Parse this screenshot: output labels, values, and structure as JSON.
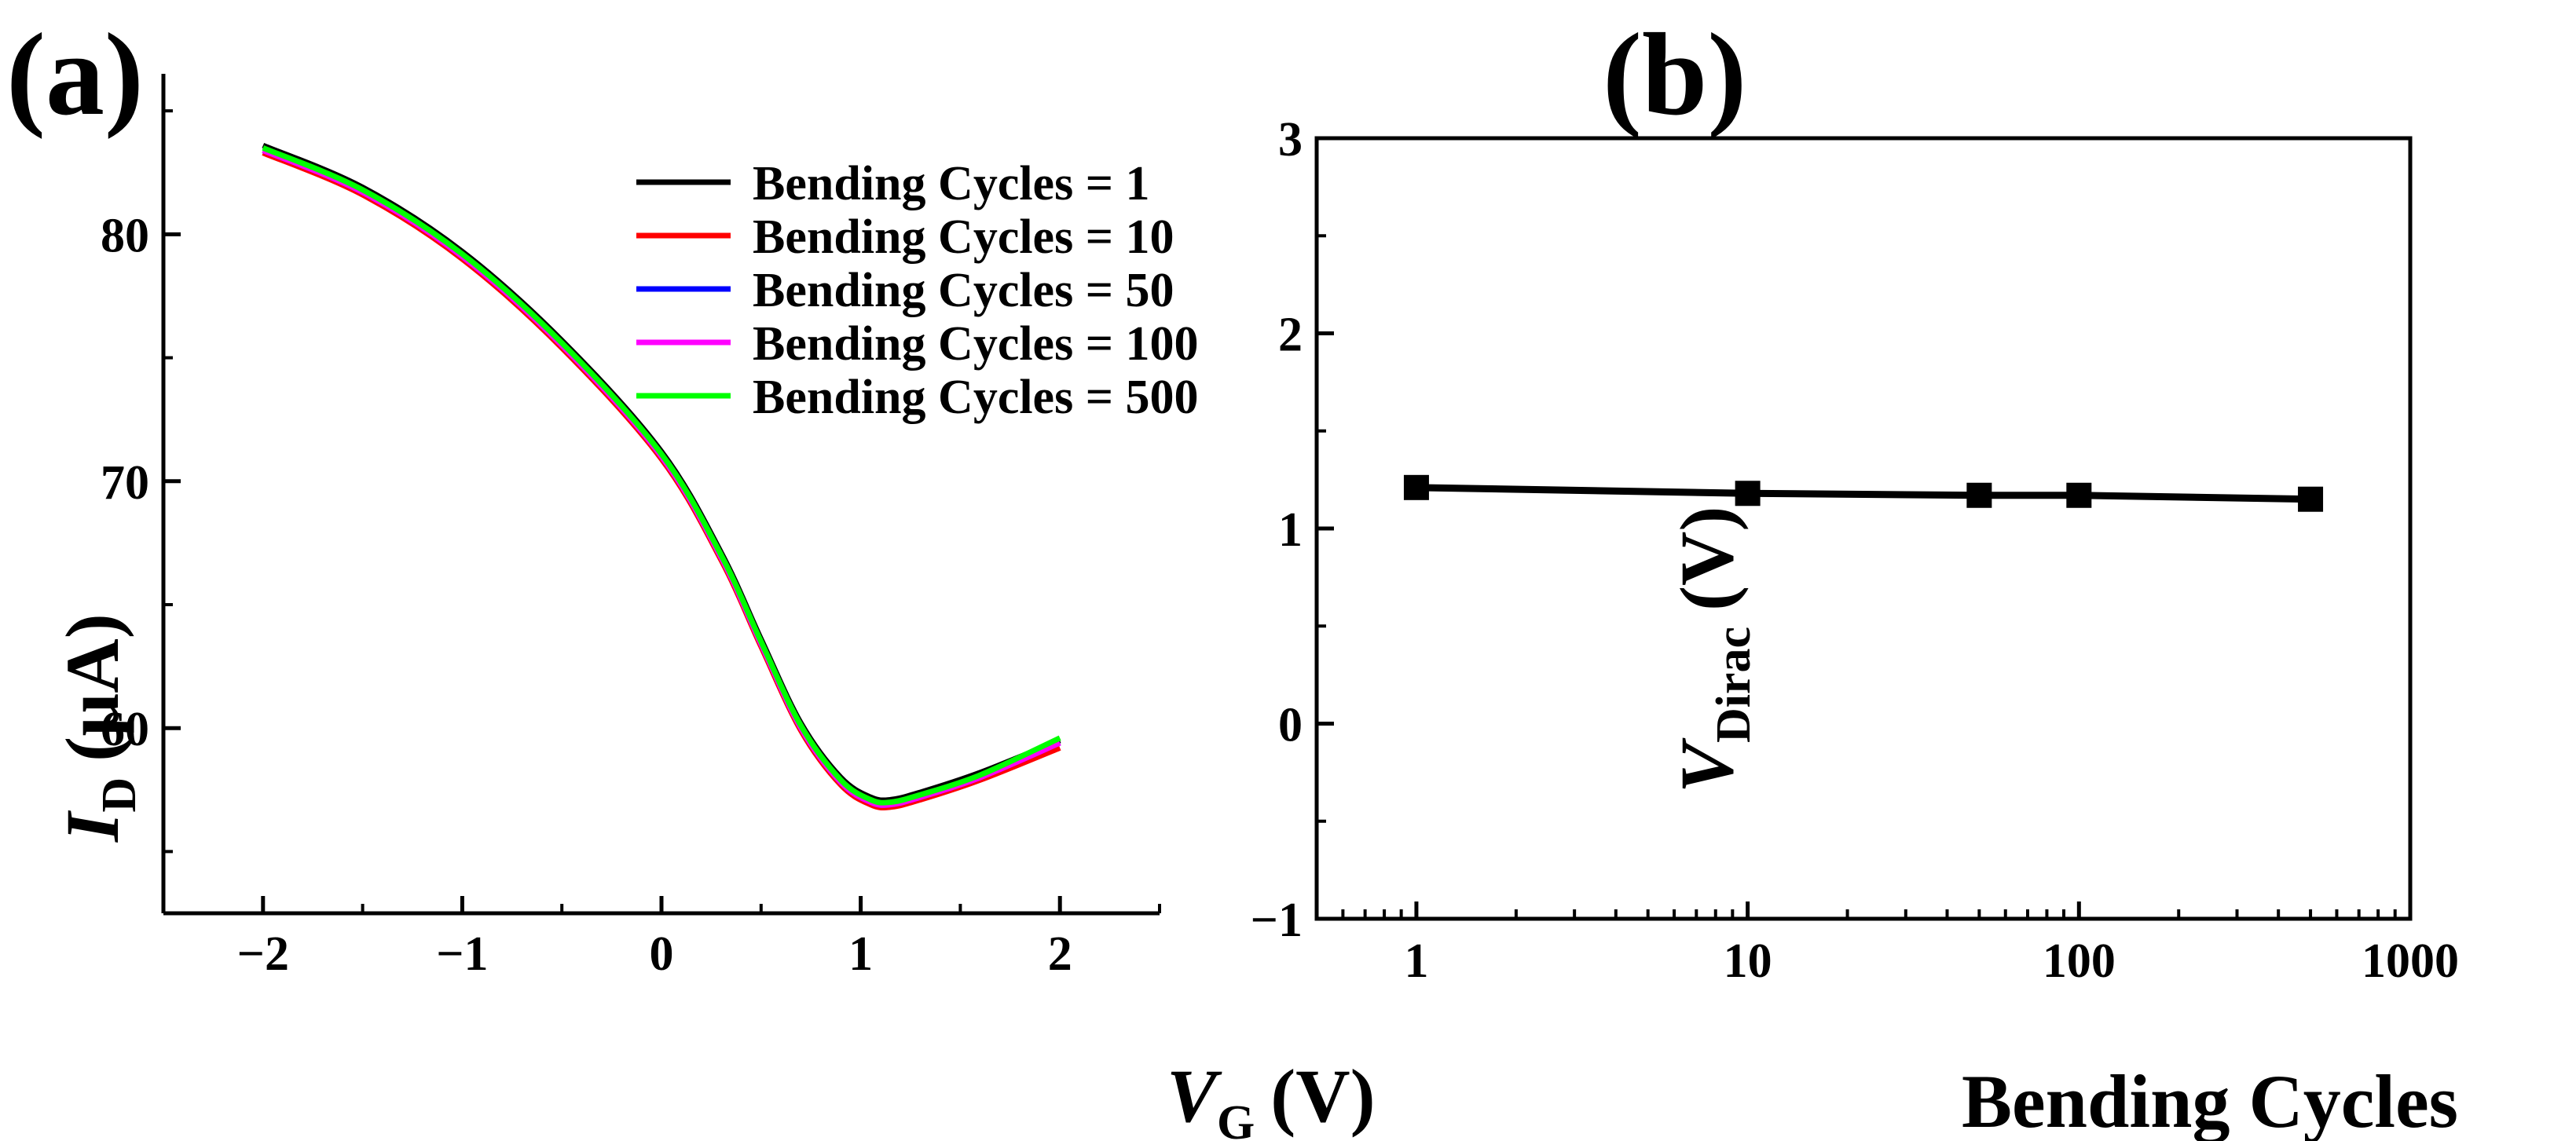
{
  "chart_data": [
    {
      "panel_label": "(a)",
      "type": "line",
      "title": "",
      "xlabel": {
        "main": "V",
        "sub": "G",
        "unit": "(V)"
      },
      "ylabel": {
        "main": "I",
        "sub": "D",
        "unit": "(µA)"
      },
      "xlim": [
        -2.5,
        2.5
      ],
      "ylim": [
        52.5,
        86.5
      ],
      "xticks": [
        -2,
        -1,
        0,
        1,
        2
      ],
      "xtick_labels": [
        "−2",
        "−1",
        "0",
        "1",
        "2"
      ],
      "yticks": [
        60,
        70,
        80
      ],
      "ytick_labels": [
        "60",
        "70",
        "80"
      ],
      "legend_position": "top-right",
      "series": [
        {
          "name": "Bending Cycles = 1",
          "color": "#000000",
          "x": [
            -2,
            -1.5,
            -1,
            -0.5,
            0,
            0.3,
            0.5,
            0.7,
            0.9,
            1.05,
            1.15,
            1.3,
            1.6,
            2
          ],
          "y": [
            83.6,
            81.9,
            79.3,
            75.7,
            71.2,
            67.1,
            63.6,
            60.2,
            58.0,
            57.2,
            57.1,
            57.4,
            58.2,
            59.5
          ]
        },
        {
          "name": "Bending Cycles = 10",
          "color": "#ff0000",
          "x": [
            -2,
            -1.5,
            -1,
            -0.5,
            0,
            0.3,
            0.5,
            0.7,
            0.9,
            1.05,
            1.15,
            1.3,
            1.6,
            2
          ],
          "y": [
            83.3,
            81.6,
            79.0,
            75.4,
            70.9,
            66.8,
            63.3,
            59.9,
            57.7,
            56.9,
            56.8,
            57.1,
            57.9,
            59.2
          ]
        },
        {
          "name": "Bending Cycles = 50",
          "color": "#0000ff",
          "x": [
            -2,
            -1.5,
            -1,
            -0.5,
            0,
            0.3,
            0.5,
            0.7,
            0.9,
            1.05,
            1.15,
            1.3,
            1.6,
            2
          ],
          "y": [
            83.4,
            81.7,
            79.1,
            75.5,
            71.0,
            66.9,
            63.4,
            60.0,
            57.8,
            57.0,
            56.9,
            57.2,
            58.0,
            59.4
          ]
        },
        {
          "name": "Bending Cycles = 100",
          "color": "#ff00ff",
          "x": [
            -2,
            -1.5,
            -1,
            -0.5,
            0,
            0.3,
            0.5,
            0.7,
            0.9,
            1.05,
            1.15,
            1.3,
            1.6,
            2
          ],
          "y": [
            83.4,
            81.7,
            79.1,
            75.5,
            71.0,
            66.9,
            63.4,
            60.0,
            57.8,
            57.0,
            56.9,
            57.2,
            58.0,
            59.4
          ]
        },
        {
          "name": "Bending Cycles = 500",
          "color": "#00ff00",
          "x": [
            -2,
            -1.5,
            -1,
            -0.5,
            0,
            0.3,
            0.5,
            0.7,
            0.9,
            1.05,
            1.15,
            1.3,
            1.6,
            2
          ],
          "y": [
            83.5,
            81.8,
            79.2,
            75.6,
            71.1,
            67.0,
            63.5,
            60.1,
            57.9,
            57.1,
            57.0,
            57.3,
            58.1,
            59.6
          ]
        }
      ]
    },
    {
      "panel_label": "(b)",
      "type": "line",
      "title": "",
      "xlabel": "Bending Cycles",
      "ylabel": {
        "main": "V",
        "sub": "Dirac",
        "unit": "(V)"
      },
      "xscale": "log",
      "xlim": [
        0.5,
        1000
      ],
      "ylim": [
        -1,
        3
      ],
      "xticks": [
        1,
        10,
        100,
        1000
      ],
      "xtick_labels": [
        "1",
        "10",
        "100",
        "1000"
      ],
      "yticks": [
        -1,
        0,
        1,
        2,
        3
      ],
      "ytick_labels": [
        "−1",
        "0",
        "1",
        "2",
        "3"
      ],
      "series": [
        {
          "name": "V_Dirac",
          "color": "#000000",
          "marker": "square",
          "x": [
            1,
            10,
            50,
            100,
            500
          ],
          "y": [
            1.21,
            1.18,
            1.17,
            1.17,
            1.15
          ]
        }
      ]
    }
  ]
}
